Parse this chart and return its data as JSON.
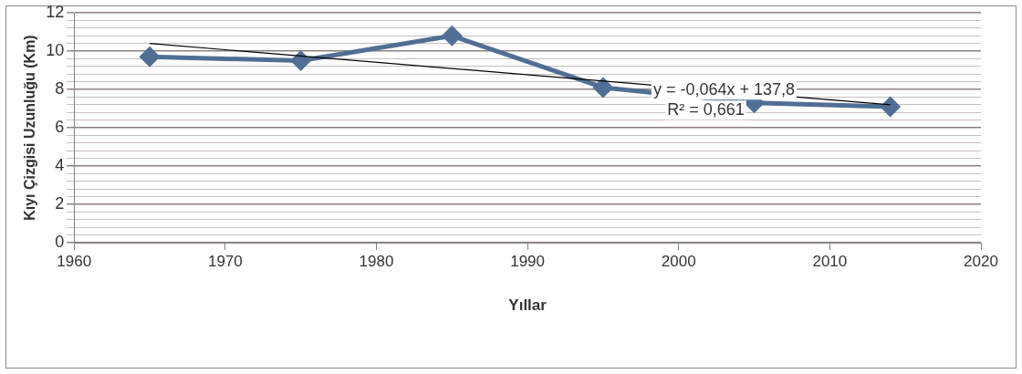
{
  "chart_data": {
    "type": "line",
    "xlabel": "Yıllar",
    "ylabel": "Kıyı Çizgisi Uzunluğu (Km)",
    "series": [
      {
        "color": "#4f6f96",
        "x": [
          1965,
          1975,
          1985,
          1995,
          2005,
          2014
        ],
        "values": [
          9.7,
          9.5,
          10.8,
          8.1,
          7.3,
          7.1
        ]
      },
      {
        "color": "#000000",
        "marker": "none",
        "x": [
          1965,
          2014
        ],
        "values": [
          10.4,
          7.2
        ]
      }
    ],
    "annotations": [
      {
        "text": "y = -0,064x + 137,8\nR² = 0,661",
        "x": 2003,
        "y": 7.7
      }
    ],
    "xlim": [
      1960,
      2020
    ],
    "xticks": [
      1960,
      1970,
      1980,
      1990,
      2000,
      2010,
      2020
    ],
    "ylim": [
      0,
      12
    ],
    "yticks": [
      0,
      {
        "value": 0.4,
        "label": null
      },
      {
        "value": 0.8,
        "label": null
      },
      {
        "value": 1.2,
        "label": null
      },
      {
        "value": 1.6,
        "label": null
      },
      2,
      {
        "value": 2.4,
        "label": null
      },
      {
        "value": 2.8,
        "label": null
      },
      {
        "value": 3.2,
        "label": null
      },
      {
        "value": 3.6,
        "label": null
      },
      4,
      {
        "value": 4.4,
        "label": null
      },
      {
        "value": 4.8,
        "label": null
      },
      {
        "value": 5.2,
        "label": null
      },
      {
        "value": 5.6,
        "label": null
      },
      6,
      {
        "value": 6.4,
        "label": null
      },
      {
        "value": 6.8,
        "label": null
      },
      {
        "value": 7.2,
        "label": null
      },
      {
        "value": 7.6,
        "label": null
      },
      8,
      {
        "value": 8.4,
        "label": null
      },
      {
        "value": 8.8,
        "label": null
      },
      {
        "value": 9.2,
        "label": null
      },
      {
        "value": 9.6,
        "label": null
      },
      10,
      {
        "value": 10.4,
        "label": null
      },
      {
        "value": 10.8,
        "label": null
      },
      {
        "value": 11.2,
        "label": null
      },
      {
        "value": 11.6,
        "label": null
      },
      12
    ],
    "grid": "y",
    "legend": false,
    "marker": "diamond",
    "line_style": "solid"
  }
}
